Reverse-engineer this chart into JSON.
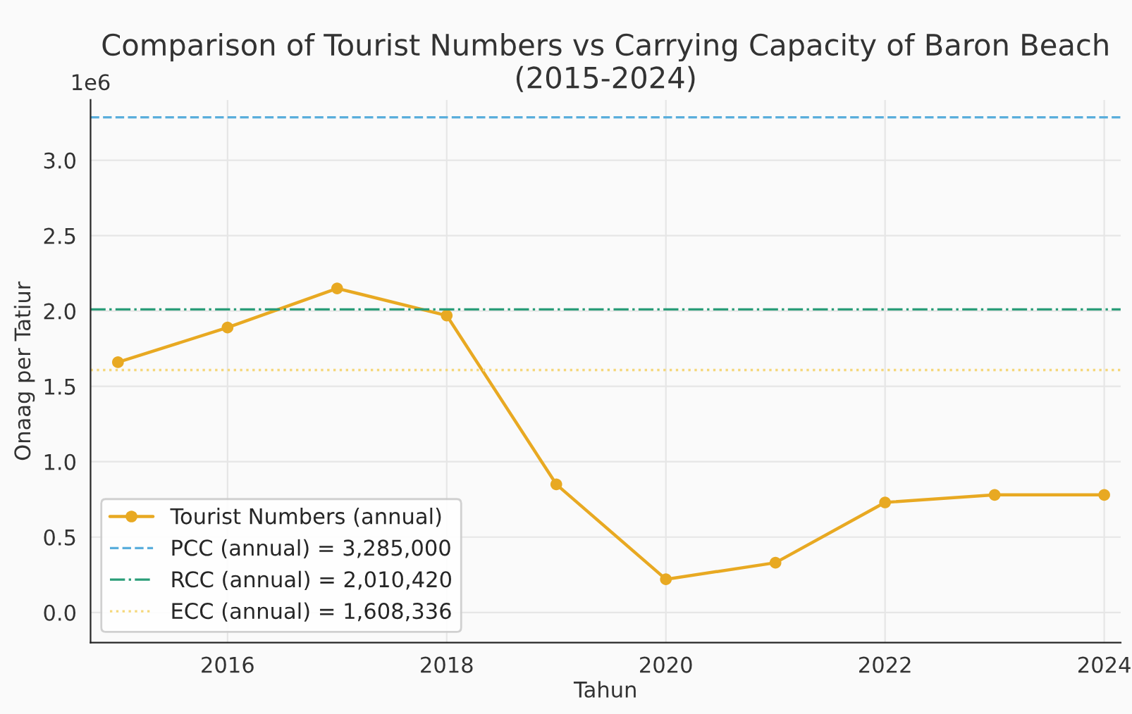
{
  "chart_data": {
    "type": "line",
    "title": "Comparison of Tourist Numbers vs Carrying Capacity of Baron Beach\n(2015-2024)",
    "xlabel": "Tahun",
    "ylabel": "Onaag per Tatiur",
    "x": [
      2015,
      2016,
      2017,
      2018,
      2019,
      2020,
      2021,
      2022,
      2023,
      2024
    ],
    "series": [
      {
        "name": "Tourist Numbers (annual)",
        "color": "#e8a922",
        "values": [
          1.66,
          1.89,
          2.15,
          1.97,
          0.85,
          0.22,
          0.33,
          0.73,
          0.78,
          0.78
        ]
      }
    ],
    "ref_lines": [
      {
        "axis": "y",
        "value": 3.285,
        "label": "PCC (annual) = 3,285,000",
        "color": "#5aaedc",
        "line_style": "dashed"
      },
      {
        "axis": "y",
        "value": 2.01042,
        "label": "RCC (annual) = 2,010,420",
        "color": "#2a9d78",
        "line_style": "dashdot"
      },
      {
        "axis": "y",
        "value": 1.608336,
        "label": "ECC (annual) = 1,608,336",
        "color": "#f5d77a",
        "line_style": "dotted"
      }
    ],
    "annotations": [
      "1e6"
    ],
    "xlim": [
      2014.75,
      2024.15
    ],
    "xticks": [
      2016,
      2018,
      2020,
      2022,
      2024
    ],
    "ylim": [
      -0.2,
      3.4
    ],
    "yticks": [
      {
        "value": 0,
        "label": "0.0"
      },
      0.5,
      {
        "value": 1,
        "label": "1.0"
      },
      1.5,
      {
        "value": 2,
        "label": "2.0"
      },
      2.5,
      {
        "value": 3,
        "label": "3.0"
      }
    ],
    "grid": true,
    "legend": "bottom left",
    "marker": "circle",
    "line_style": "solid"
  }
}
